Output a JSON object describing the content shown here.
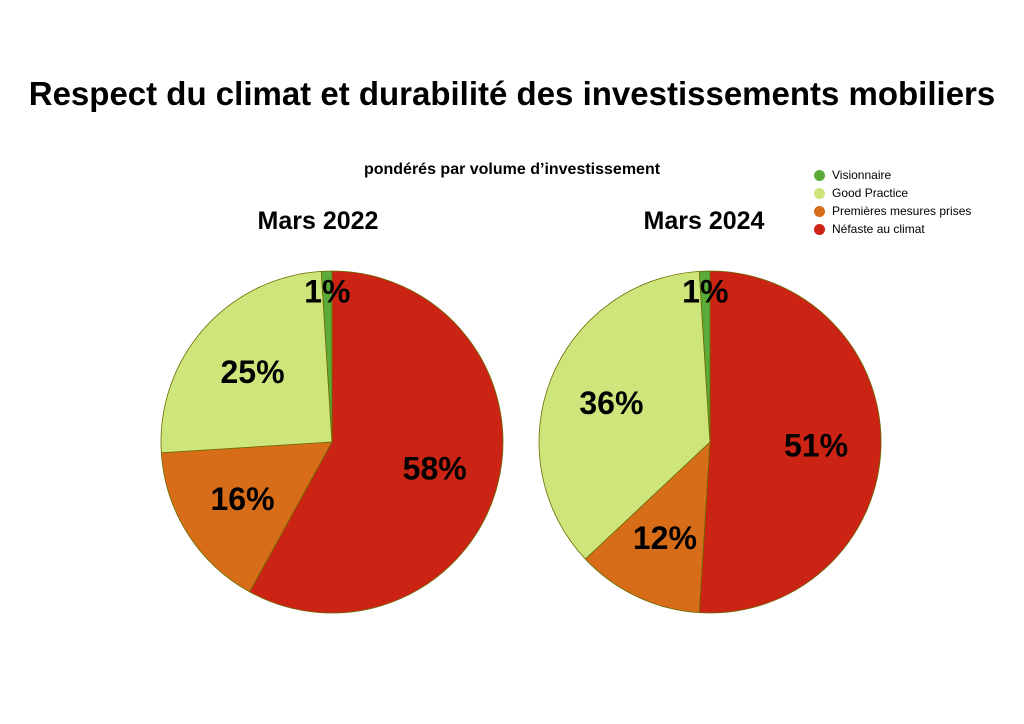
{
  "title": "Respect du climat et durabilité des investissements mobiliers",
  "subtitle": "pondérés par volume d’investissement",
  "legend": [
    {
      "label": "Visionnaire",
      "color": "#5aab3a"
    },
    {
      "label": "Good Practice",
      "color": "#cde57b"
    },
    {
      "label": "Premières mesures prises",
      "color": "#d76c19"
    },
    {
      "label": "Néfaste au climat",
      "color": "#cc2414"
    }
  ],
  "chart_data": [
    {
      "type": "pie",
      "title": "Mars 2022",
      "categories": [
        "Visionnaire",
        "Good Practice",
        "Premières mesures prises",
        "Néfaste au climat"
      ],
      "values": [
        1,
        25,
        16,
        58
      ],
      "labels": [
        "1%",
        "25%",
        "16%",
        "58%"
      ],
      "colors": [
        "#5aab3a",
        "#cde57b",
        "#d76c19",
        "#cc2414"
      ]
    },
    {
      "type": "pie",
      "title": "Mars 2024",
      "categories": [
        "Visionnaire",
        "Good Practice",
        "Premières mesures prises",
        "Néfaste au climat"
      ],
      "values": [
        1,
        36,
        12,
        51
      ],
      "labels": [
        "1%",
        "36%",
        "12%",
        "51%"
      ],
      "colors": [
        "#5aab3a",
        "#cde57b",
        "#d76c19",
        "#cc2414"
      ]
    }
  ]
}
